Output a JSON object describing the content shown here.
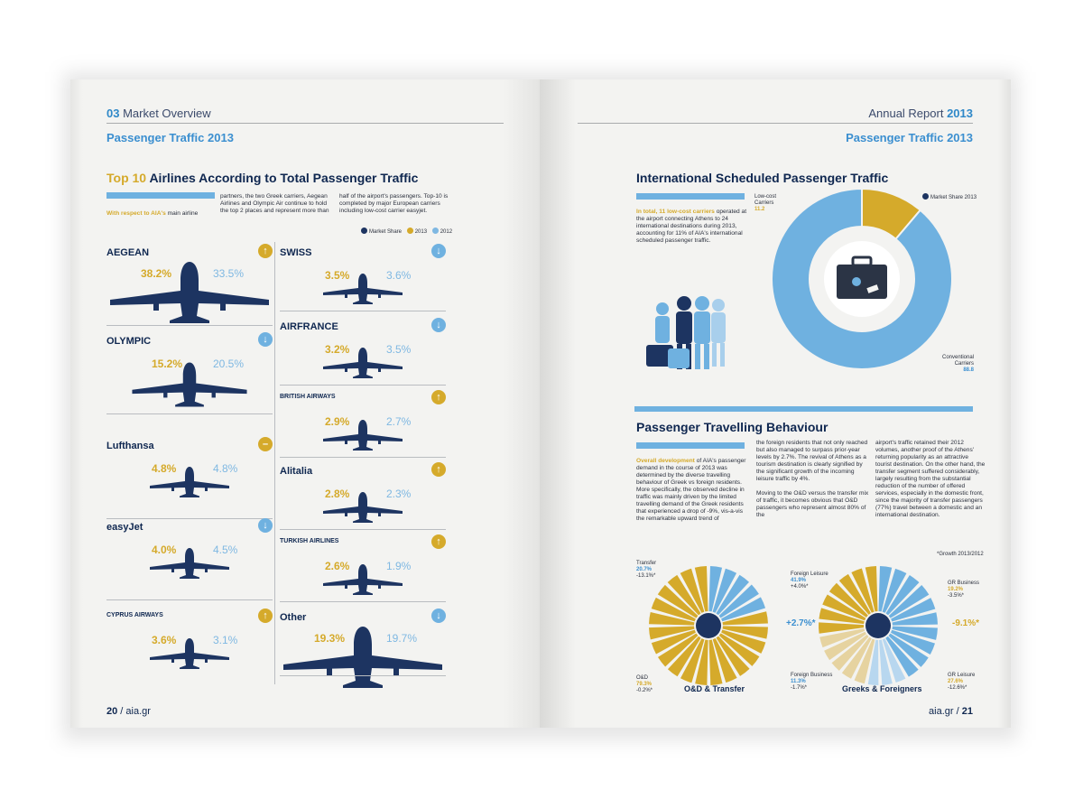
{
  "left_page": {
    "header": {
      "section_num": "03",
      "section_name": "Market Overview"
    },
    "section_title": "Passenger Traffic 2013",
    "chart_title_hl": "Top 10",
    "chart_title_rest": " Airlines According to Total Passenger Traffic",
    "intro": {
      "col1_hl": "With respect to AIA's",
      "col1_rest": " main airline",
      "col2": "partners, the two Greek carriers, Aegean Airlines and Olympic Air continue to hold the top 2 places and represent more than",
      "col3": "half of the airport's passengers. Top-10 is completed by major European carriers including low-cost carrier easyjet."
    },
    "legend": {
      "market_share": "Market Share",
      "y2013": "2013",
      "y2012": "2012"
    },
    "folio_num": "20",
    "folio_site": "aia.gr"
  },
  "chart_data": [
    {
      "type": "bar",
      "title": "Top 10 Airlines According to Total Passenger Traffic",
      "series": [
        {
          "name": "2013",
          "values": [
            38.2,
            15.2,
            4.8,
            4.0,
            3.6,
            3.5,
            3.2,
            2.9,
            2.8,
            2.6,
            19.3
          ]
        },
        {
          "name": "2012",
          "values": [
            33.5,
            20.5,
            4.8,
            4.5,
            3.1,
            3.6,
            3.5,
            2.7,
            2.3,
            1.9,
            19.7
          ]
        }
      ],
      "categories": [
        "AEGEAN",
        "OLYMPIC",
        "Lufthansa",
        "easyJet",
        "CYPRUS AIRWAYS",
        "SWISS",
        "AIRFRANCE",
        "BRITISH AIRWAYS",
        "Alitalia",
        "TURKISH AIRLINES",
        "Other"
      ]
    },
    {
      "type": "pie",
      "title": "International Scheduled Passenger Traffic",
      "categories": [
        "Low-cost Carriers",
        "Conventional Carriers"
      ],
      "values": [
        11.2,
        88.8
      ]
    },
    {
      "type": "pie",
      "title": "O&D & Transfer",
      "categories": [
        "Transfer",
        "O&D"
      ],
      "values": [
        20.7,
        79.3
      ]
    },
    {
      "type": "pie",
      "title": "Greeks & Foreigners",
      "categories": [
        "Foreign Leisure",
        "Foreign Business",
        "GR Business",
        "GR Leisure"
      ],
      "values": [
        41.9,
        11.3,
        19.2,
        27.6
      ]
    }
  ],
  "airlines": [
    {
      "logo": "AEGEAN",
      "v13": "38.2%",
      "v12": "33.5%",
      "trend": "up",
      "t": "↑"
    },
    {
      "logo": "OLYMPIC",
      "v13": "15.2%",
      "v12": "20.5%",
      "trend": "down",
      "t": "↓"
    },
    {
      "logo": "Lufthansa",
      "v13": "4.8%",
      "v12": "4.8%",
      "trend": "flat",
      "t": "–"
    },
    {
      "logo": "easyJet",
      "v13": "4.0%",
      "v12": "4.5%",
      "trend": "down",
      "t": "↓"
    },
    {
      "logo": "CYPRUS AIRWAYS",
      "v13": "3.6%",
      "v12": "3.1%",
      "trend": "up",
      "t": "↑"
    },
    {
      "logo": "SWISS",
      "v13": "3.5%",
      "v12": "3.6%",
      "trend": "down",
      "t": "↓"
    },
    {
      "logo": "AIRFRANCE",
      "v13": "3.2%",
      "v12": "3.5%",
      "trend": "down",
      "t": "↓"
    },
    {
      "logo": "BRITISH AIRWAYS",
      "v13": "2.9%",
      "v12": "2.7%",
      "trend": "up",
      "t": "↑"
    },
    {
      "logo": "Alitalia",
      "v13": "2.8%",
      "v12": "2.3%",
      "trend": "up",
      "t": "↑"
    },
    {
      "logo": "TURKISH AIRLINES",
      "v13": "2.6%",
      "v12": "1.9%",
      "trend": "up",
      "t": "↑"
    },
    {
      "logo": "Other",
      "v13": "19.3%",
      "v12": "19.7%",
      "trend": "down",
      "t": "↓"
    }
  ],
  "right_page": {
    "header": {
      "report": "Annual Report",
      "year": "2013"
    },
    "section_title": "Passenger Traffic 2013",
    "intl": {
      "title": "International Scheduled Passenger Traffic",
      "text_hl": "In total, 11 low-cost carriers",
      "text_rest": " operated at the airport connecting Athens to 24 international destinations during 2013, accounting for 11% of AIA's international scheduled passenger traffic.",
      "legend": "Market Share 2013",
      "lowcost_label1": "Low-cost",
      "lowcost_label2": "Carriers",
      "lowcost_value": "11.2",
      "conv_label1": "Conventional",
      "conv_label2": "Carriers",
      "conv_value": "88.8"
    },
    "behaviour": {
      "title": "Passenger Travelling Behaviour",
      "col1_hl": "Overall development",
      "col1_rest": " of AIA's passenger demand in the course of 2013 was determined by the diverse travelling behaviour of Greek vs foreign residents. More specifically, the observed decline in traffic was mainly driven by the limited travelling demand of the Greek residents that experienced a drop of -9%, vis-a-vis the remarkable upward trend of",
      "col2": "the foreign residents that not only reached but also managed to surpass prior-year levels by 2.7%. The revival of Athens as a tourism destination is clearly signified by the significant growth of the incoming leisure traffic by 4%.",
      "col2b": "Moving to the O&D versus the transfer mix of traffic, it becomes obvious that O&D passengers who represent almost 80% of the",
      "col3": "airport's traffic retained their 2012 volumes, another proof of the Athens' returning popularity as an attractive tourist destination. On the other hand, the transfer segment suffered considerably, largely resulting from the substantial reduction of the number of offered services, especially in the domestic front, since the majority of transfer passengers (77%) travel between a domestic and an international destination.",
      "growth_note": "*Growth 2013/2012"
    },
    "od": {
      "title": "O&D & Transfer",
      "transfer_label": "Transfer",
      "transfer_val": "20.7%",
      "transfer_growth": "-13.1%*",
      "od_label": "O&D",
      "od_val": "79.3%",
      "od_growth": "-0.2%*"
    },
    "gf": {
      "title": "Greeks & Foreigners",
      "fl_label": "Foreign Leisure",
      "fl_val": "41.9%",
      "fl_growth": "+4.0%*",
      "fb_label": "Foreign Business",
      "fb_val": "11.3%",
      "fb_growth": "-1.7%*",
      "gb_label": "GR Business",
      "gb_val": "19.2%",
      "gb_growth": "-3.5%*",
      "gl_label": "GR Leisure",
      "gl_val": "27.6%",
      "gl_growth": "-12.6%*",
      "foreign_total": "+2.7%*",
      "greek_total": "-9.1%*"
    },
    "folio_site": "aia.gr",
    "folio_num": "21"
  }
}
